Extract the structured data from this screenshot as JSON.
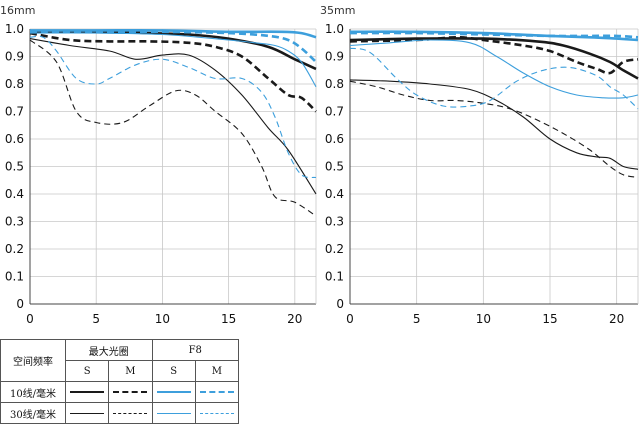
{
  "colors": {
    "black": "#1a1a1a",
    "blue": "#3d9fdc",
    "grid": "#c8c8c8",
    "axis": "#444444"
  },
  "chart_data": [
    {
      "type": "line",
      "title": "16mm",
      "xlim": [
        0,
        21.6
      ],
      "ylim": [
        0,
        1.0
      ],
      "x_ticks": [
        0,
        5,
        10,
        15,
        20
      ],
      "y_ticks": [
        0,
        0.1,
        0.2,
        0.3,
        0.4,
        0.5,
        0.6,
        0.7,
        0.8,
        0.9,
        1.0
      ],
      "y_tick_labels": [
        "0",
        "0.1",
        "0.2",
        "0.3",
        "0.4",
        "0.5",
        "0.6",
        "0.7",
        "0.8",
        "0.9",
        "1.0"
      ],
      "grid": true,
      "series": [
        {
          "group": "max-aperture",
          "freq": "10",
          "dir": "S",
          "color": "black",
          "width": 2.6,
          "dash": false,
          "points": [
            [
              0,
              0.99
            ],
            [
              3,
              0.99
            ],
            [
              6,
              0.99
            ],
            [
              9,
              0.985
            ],
            [
              12,
              0.98
            ],
            [
              15,
              0.965
            ],
            [
              18,
              0.935
            ],
            [
              20,
              0.89
            ],
            [
              21.6,
              0.855
            ]
          ]
        },
        {
          "group": "max-aperture",
          "freq": "10",
          "dir": "M",
          "color": "black",
          "width": 2.6,
          "dash": true,
          "points": [
            [
              0,
              0.985
            ],
            [
              3,
              0.96
            ],
            [
              6,
              0.955
            ],
            [
              9,
              0.955
            ],
            [
              12,
              0.95
            ],
            [
              14,
              0.935
            ],
            [
              16,
              0.9
            ],
            [
              18,
              0.82
            ],
            [
              19.5,
              0.76
            ],
            [
              20.5,
              0.75
            ],
            [
              21.6,
              0.7
            ]
          ]
        },
        {
          "group": "max-aperture",
          "freq": "30",
          "dir": "S",
          "color": "black",
          "width": 1.1,
          "dash": false,
          "points": [
            [
              0,
              0.965
            ],
            [
              3,
              0.94
            ],
            [
              6,
              0.92
            ],
            [
              8,
              0.89
            ],
            [
              10,
              0.905
            ],
            [
              12,
              0.905
            ],
            [
              14,
              0.85
            ],
            [
              16,
              0.76
            ],
            [
              18,
              0.64
            ],
            [
              19.5,
              0.56
            ],
            [
              21.6,
              0.4
            ]
          ]
        },
        {
          "group": "max-aperture",
          "freq": "30",
          "dir": "M",
          "color": "black",
          "width": 1.1,
          "dash": true,
          "points": [
            [
              0,
              0.96
            ],
            [
              2,
              0.88
            ],
            [
              3.5,
              0.7
            ],
            [
              5,
              0.66
            ],
            [
              7,
              0.66
            ],
            [
              9,
              0.72
            ],
            [
              11,
              0.775
            ],
            [
              12.5,
              0.76
            ],
            [
              14,
              0.7
            ],
            [
              16,
              0.62
            ],
            [
              17.5,
              0.5
            ],
            [
              18.5,
              0.39
            ],
            [
              20,
              0.37
            ],
            [
              21.6,
              0.32
            ]
          ]
        },
        {
          "group": "f8",
          "freq": "10",
          "dir": "S",
          "color": "blue",
          "width": 2.6,
          "dash": false,
          "points": [
            [
              0,
              0.995
            ],
            [
              5,
              0.995
            ],
            [
              10,
              0.995
            ],
            [
              15,
              0.99
            ],
            [
              19,
              0.99
            ],
            [
              20.5,
              0.985
            ],
            [
              21.6,
              0.97
            ]
          ]
        },
        {
          "group": "f8",
          "freq": "10",
          "dir": "M",
          "color": "blue",
          "width": 2.6,
          "dash": true,
          "points": [
            [
              0,
              0.99
            ],
            [
              5,
              0.99
            ],
            [
              10,
              0.99
            ],
            [
              15,
              0.985
            ],
            [
              18,
              0.975
            ],
            [
              19.5,
              0.96
            ],
            [
              20.5,
              0.93
            ],
            [
              21.6,
              0.88
            ]
          ]
        },
        {
          "group": "f8",
          "freq": "30",
          "dir": "S",
          "color": "blue",
          "width": 1.1,
          "dash": false,
          "points": [
            [
              0,
              0.985
            ],
            [
              5,
              0.985
            ],
            [
              10,
              0.98
            ],
            [
              15,
              0.96
            ],
            [
              17,
              0.95
            ],
            [
              18.5,
              0.94
            ],
            [
              19.5,
              0.92
            ],
            [
              20.5,
              0.88
            ],
            [
              21.6,
              0.79
            ]
          ]
        },
        {
          "group": "f8",
          "freq": "30",
          "dir": "M",
          "color": "blue",
          "width": 1.1,
          "dash": true,
          "points": [
            [
              0,
              0.97
            ],
            [
              1,
              0.97
            ],
            [
              2,
              0.92
            ],
            [
              3.5,
              0.82
            ],
            [
              5,
              0.8
            ],
            [
              6,
              0.82
            ],
            [
              8,
              0.87
            ],
            [
              10,
              0.89
            ],
            [
              12,
              0.86
            ],
            [
              14,
              0.82
            ],
            [
              16,
              0.82
            ],
            [
              17.5,
              0.77
            ],
            [
              18.5,
              0.68
            ],
            [
              19.5,
              0.55
            ],
            [
              20.5,
              0.47
            ],
            [
              21.6,
              0.46
            ]
          ]
        }
      ]
    },
    {
      "type": "line",
      "title": "35mm",
      "xlim": [
        0,
        21.6
      ],
      "ylim": [
        0,
        1.0
      ],
      "x_ticks": [
        0,
        5,
        10,
        15,
        20
      ],
      "y_ticks": [
        0,
        0.1,
        0.2,
        0.3,
        0.4,
        0.5,
        0.6,
        0.7,
        0.8,
        0.9,
        1.0
      ],
      "y_tick_labels": [
        "0",
        "0.1",
        "0.2",
        "0.3",
        "0.4",
        "0.5",
        "0.6",
        "0.7",
        "0.8",
        "0.9",
        "1.0"
      ],
      "grid": true,
      "series": [
        {
          "group": "max-aperture",
          "freq": "10",
          "dir": "S",
          "color": "black",
          "width": 2.6,
          "dash": false,
          "points": [
            [
              0,
              0.96
            ],
            [
              5,
              0.965
            ],
            [
              10,
              0.965
            ],
            [
              14,
              0.955
            ],
            [
              16,
              0.94
            ],
            [
              18,
              0.91
            ],
            [
              19.5,
              0.88
            ],
            [
              20.5,
              0.85
            ],
            [
              21.6,
              0.82
            ]
          ]
        },
        {
          "group": "max-aperture",
          "freq": "10",
          "dir": "M",
          "color": "black",
          "width": 2.6,
          "dash": true,
          "points": [
            [
              0,
              0.955
            ],
            [
              5,
              0.96
            ],
            [
              8,
              0.97
            ],
            [
              10,
              0.96
            ],
            [
              13,
              0.94
            ],
            [
              15,
              0.92
            ],
            [
              17,
              0.88
            ],
            [
              18.5,
              0.855
            ],
            [
              19.5,
              0.84
            ],
            [
              20.5,
              0.88
            ],
            [
              21.6,
              0.89
            ]
          ]
        },
        {
          "group": "max-aperture",
          "freq": "30",
          "dir": "S",
          "color": "black",
          "width": 1.1,
          "dash": false,
          "points": [
            [
              0,
              0.815
            ],
            [
              3,
              0.81
            ],
            [
              6,
              0.8
            ],
            [
              9,
              0.78
            ],
            [
              11,
              0.74
            ],
            [
              13,
              0.68
            ],
            [
              15,
              0.6
            ],
            [
              17,
              0.55
            ],
            [
              18.5,
              0.535
            ],
            [
              19.5,
              0.53
            ],
            [
              20.5,
              0.5
            ],
            [
              21.6,
              0.49
            ]
          ]
        },
        {
          "group": "max-aperture",
          "freq": "30",
          "dir": "M",
          "color": "black",
          "width": 1.1,
          "dash": true,
          "points": [
            [
              0,
              0.81
            ],
            [
              2,
              0.79
            ],
            [
              4,
              0.76
            ],
            [
              6,
              0.74
            ],
            [
              8,
              0.74
            ],
            [
              10,
              0.73
            ],
            [
              12,
              0.71
            ],
            [
              14,
              0.67
            ],
            [
              16,
              0.62
            ],
            [
              18,
              0.56
            ],
            [
              19.5,
              0.5
            ],
            [
              20.5,
              0.47
            ],
            [
              21.6,
              0.46
            ]
          ]
        },
        {
          "group": "f8",
          "freq": "10",
          "dir": "S",
          "color": "blue",
          "width": 2.6,
          "dash": false,
          "points": [
            [
              0,
              0.99
            ],
            [
              5,
              0.99
            ],
            [
              10,
              0.985
            ],
            [
              15,
              0.975
            ],
            [
              18,
              0.97
            ],
            [
              20,
              0.965
            ],
            [
              21.6,
              0.96
            ]
          ]
        },
        {
          "group": "f8",
          "freq": "10",
          "dir": "M",
          "color": "blue",
          "width": 2.6,
          "dash": true,
          "points": [
            [
              0,
              0.985
            ],
            [
              5,
              0.985
            ],
            [
              10,
              0.98
            ],
            [
              15,
              0.975
            ],
            [
              18,
              0.975
            ],
            [
              20,
              0.975
            ],
            [
              21.6,
              0.97
            ]
          ]
        },
        {
          "group": "f8",
          "freq": "30",
          "dir": "S",
          "color": "blue",
          "width": 1.1,
          "dash": false,
          "points": [
            [
              0,
              0.94
            ],
            [
              3,
              0.95
            ],
            [
              6,
              0.96
            ],
            [
              9,
              0.95
            ],
            [
              11,
              0.9
            ],
            [
              13,
              0.84
            ],
            [
              15,
              0.79
            ],
            [
              17,
              0.76
            ],
            [
              19,
              0.75
            ],
            [
              20.5,
              0.75
            ],
            [
              21.6,
              0.76
            ]
          ]
        },
        {
          "group": "f8",
          "freq": "30",
          "dir": "M",
          "color": "blue",
          "width": 1.1,
          "dash": true,
          "points": [
            [
              0,
              0.93
            ],
            [
              1.5,
              0.915
            ],
            [
              3.5,
              0.82
            ],
            [
              5,
              0.76
            ],
            [
              7,
              0.72
            ],
            [
              9,
              0.72
            ],
            [
              10.5,
              0.74
            ],
            [
              12.5,
              0.81
            ],
            [
              14.5,
              0.85
            ],
            [
              16.5,
              0.86
            ],
            [
              18.5,
              0.83
            ],
            [
              19.5,
              0.79
            ],
            [
              20.5,
              0.76
            ],
            [
              21.6,
              0.71
            ]
          ]
        }
      ]
    }
  ],
  "legend": {
    "row_header": "空间频率",
    "group_max": "最大光圈",
    "group_f8": "F8",
    "col_s": "S",
    "col_m": "M",
    "row_10": "10线/毫米",
    "row_30": "30线/毫米"
  }
}
